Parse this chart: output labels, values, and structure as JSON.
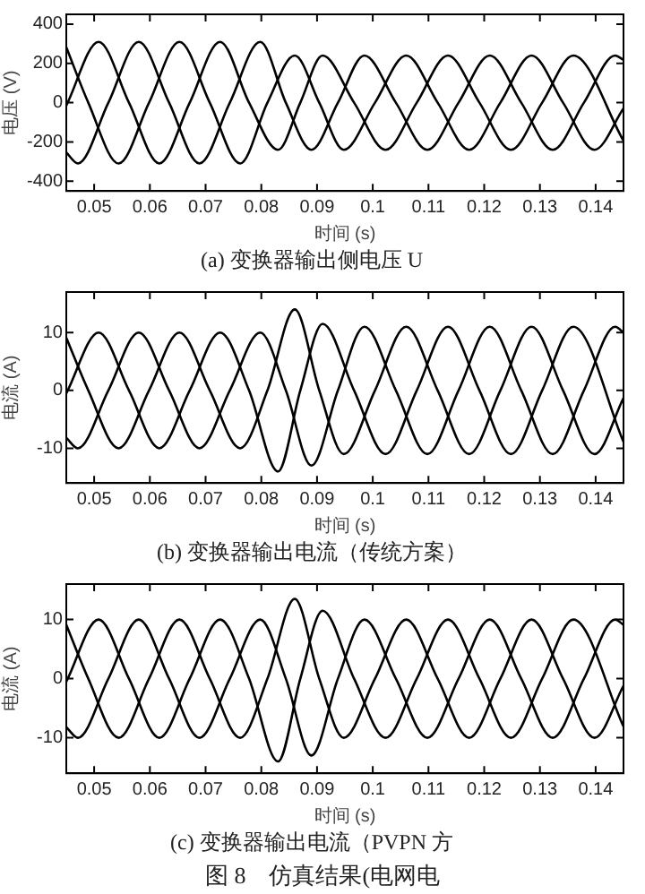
{
  "chart_data": [
    {
      "type": "line",
      "title": "(a) 变换器输出侧电压 U",
      "xlabel": "时间 (s)",
      "ylabel": "电压 (V)",
      "xlim": [
        0.045,
        0.145
      ],
      "xticks": [
        0.05,
        0.06,
        0.07,
        0.08,
        0.09,
        0.1,
        0.11,
        0.12,
        0.13,
        0.14
      ],
      "ylim": [
        -450,
        450
      ],
      "yticks": [
        -400,
        -200,
        0,
        200,
        400
      ],
      "series": [
        {
          "color": "#000000",
          "x": [
            0.045,
            0.04895,
            0.0544,
            0.05985,
            0.0653,
            0.07075,
            0.0762,
            0.0811,
            0.086,
            0.0904,
            0.0948,
            0.1004,
            0.106,
            0.11165,
            0.1173,
            0.1229,
            0.1285,
            0.13415,
            0.1398,
            0.145
          ],
          "values": [
            282,
            0,
            -310,
            0,
            310,
            0,
            -310,
            0,
            240,
            0,
            -240,
            0,
            240,
            0,
            -240,
            0,
            240,
            0,
            -240,
            -29
          ]
        },
        {
          "color": "#000000",
          "x": [
            0.045,
            0.0508,
            0.05625,
            0.0617,
            0.06715,
            0.0726,
            0.0778,
            0.083,
            0.087,
            0.091,
            0.09665,
            0.1023,
            0.1079,
            0.1135,
            0.11915,
            0.1248,
            0.1304,
            0.136,
            0.145
          ],
          "values": [
            -15,
            310,
            0,
            -310,
            0,
            310,
            0,
            -240,
            0,
            240,
            0,
            -240,
            0,
            240,
            0,
            -240,
            0,
            240,
            -194
          ]
        },
        {
          "color": "#000000",
          "x": [
            0.045,
            0.0471,
            0.05255,
            0.058,
            0.06345,
            0.0689,
            0.07435,
            0.0798,
            0.0844,
            0.089,
            0.09375,
            0.0985,
            0.10415,
            0.1098,
            0.1154,
            0.121,
            0.12665,
            0.1323,
            0.1379,
            0.1435,
            0.145
          ],
          "values": [
            -254,
            -310,
            0,
            310,
            0,
            -310,
            0,
            310,
            0,
            -240,
            0,
            240,
            0,
            -240,
            0,
            240,
            0,
            -240,
            0,
            240,
            218
          ]
        }
      ]
    },
    {
      "type": "line",
      "title": "(b) 变换器输出电流（传统方案）",
      "xlabel": "时间 (s)",
      "ylabel": "电流 (A)",
      "xlim": [
        0.045,
        0.145
      ],
      "xticks": [
        0.05,
        0.06,
        0.07,
        0.08,
        0.09,
        0.1,
        0.11,
        0.12,
        0.13,
        0.14
      ],
      "ylim": [
        -16,
        17
      ],
      "yticks": [
        -10,
        0,
        10
      ],
      "series": [
        {
          "color": "#000000",
          "x": [
            0.045,
            0.04895,
            0.0544,
            0.05985,
            0.0653,
            0.07075,
            0.0762,
            0.0811,
            0.086,
            0.0904,
            0.0948,
            0.1004,
            0.106,
            0.11165,
            0.1173,
            0.1229,
            0.1285,
            0.13415,
            0.1398,
            0.145
          ],
          "values": [
            9.1,
            0,
            -10,
            0,
            10,
            0,
            -10,
            0,
            14,
            0,
            -11,
            0,
            11,
            0,
            -11,
            0,
            11,
            0,
            -11,
            -1.3
          ]
        },
        {
          "color": "#000000",
          "x": [
            0.045,
            0.0508,
            0.05625,
            0.0617,
            0.06715,
            0.0726,
            0.0778,
            0.083,
            0.087,
            0.091,
            0.09665,
            0.1023,
            0.1079,
            0.1135,
            0.11915,
            0.1248,
            0.1304,
            0.136,
            0.145
          ],
          "values": [
            -0.5,
            10,
            0,
            -10,
            0,
            10,
            0,
            -14,
            0,
            11.5,
            0,
            -11,
            0,
            11,
            0,
            -11,
            0,
            11,
            -8.9
          ]
        },
        {
          "color": "#000000",
          "x": [
            0.045,
            0.0471,
            0.05255,
            0.058,
            0.06345,
            0.0689,
            0.07435,
            0.0798,
            0.0844,
            0.089,
            0.09375,
            0.0985,
            0.10415,
            0.1098,
            0.1154,
            0.121,
            0.12665,
            0.1323,
            0.1379,
            0.1435,
            0.145
          ],
          "values": [
            -8.2,
            -10,
            0,
            10,
            0,
            -10,
            0,
            10,
            0,
            -13,
            0,
            11,
            0,
            -11,
            0,
            11,
            0,
            -11,
            0,
            11,
            10
          ]
        }
      ]
    },
    {
      "type": "line",
      "title": "(c) 变换器输出电流（PVPN 方",
      "xlabel": "时间 (s)",
      "ylabel": "电流 (A)",
      "xlim": [
        0.045,
        0.145
      ],
      "xticks": [
        0.05,
        0.06,
        0.07,
        0.08,
        0.09,
        0.1,
        0.11,
        0.12,
        0.13,
        0.14
      ],
      "ylim": [
        -16,
        16
      ],
      "yticks": [
        -10,
        0,
        10
      ],
      "annotations": [
        "图 8　仿真结果(电网电"
      ],
      "series": [
        {
          "color": "#000000",
          "x": [
            0.045,
            0.04895,
            0.0544,
            0.05985,
            0.0653,
            0.07075,
            0.0762,
            0.0811,
            0.086,
            0.0904,
            0.0948,
            0.1004,
            0.106,
            0.11165,
            0.1173,
            0.1229,
            0.1285,
            0.13415,
            0.1398,
            0.145
          ],
          "values": [
            9.1,
            0,
            -10,
            0,
            10,
            0,
            -10,
            0,
            13.5,
            0,
            -10,
            0,
            10,
            0,
            -10,
            0,
            10,
            0,
            -10,
            -1.2
          ]
        },
        {
          "color": "#000000",
          "x": [
            0.045,
            0.0508,
            0.05625,
            0.0617,
            0.06715,
            0.0726,
            0.0778,
            0.083,
            0.087,
            0.091,
            0.09665,
            0.1023,
            0.1079,
            0.1135,
            0.11915,
            0.1248,
            0.1304,
            0.136,
            0.145
          ],
          "values": [
            -0.5,
            10,
            0,
            -10,
            0,
            10,
            0,
            -14,
            0,
            11.5,
            0,
            -10,
            0,
            10,
            0,
            -10,
            0,
            10,
            -8.1
          ]
        },
        {
          "color": "#000000",
          "x": [
            0.045,
            0.0471,
            0.05255,
            0.058,
            0.06345,
            0.0689,
            0.07435,
            0.0798,
            0.0844,
            0.089,
            0.09375,
            0.0985,
            0.10415,
            0.1098,
            0.1154,
            0.121,
            0.12665,
            0.1323,
            0.1379,
            0.1435,
            0.145
          ],
          "values": [
            -8.2,
            -10,
            0,
            10,
            0,
            -10,
            0,
            10,
            0,
            -13,
            0,
            10,
            0,
            -10,
            0,
            10,
            0,
            -10,
            0,
            10,
            9.1
          ]
        }
      ]
    }
  ]
}
